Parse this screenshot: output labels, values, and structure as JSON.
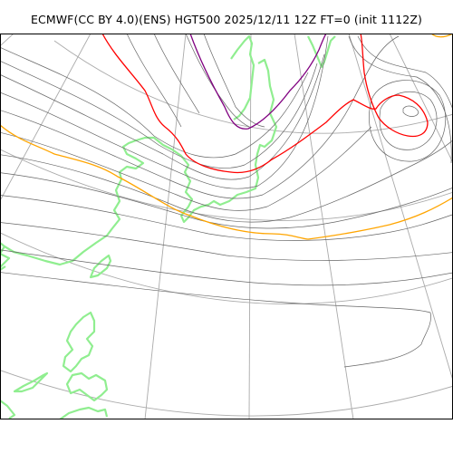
{
  "title": "ECMWF(CC BY 4.0)(ENS) HGT500 2025/12/11 12Z FT=0 (init 1112Z)",
  "colors": {
    "background": "#ffffff",
    "frame": "#000000",
    "graticule": "#aaaaaa",
    "coastline": "#90ee90",
    "contour": "#666666",
    "contour_5700": "#ffa500",
    "contour_5400": "#ff0000",
    "contour_5100": "#800080"
  }
}
